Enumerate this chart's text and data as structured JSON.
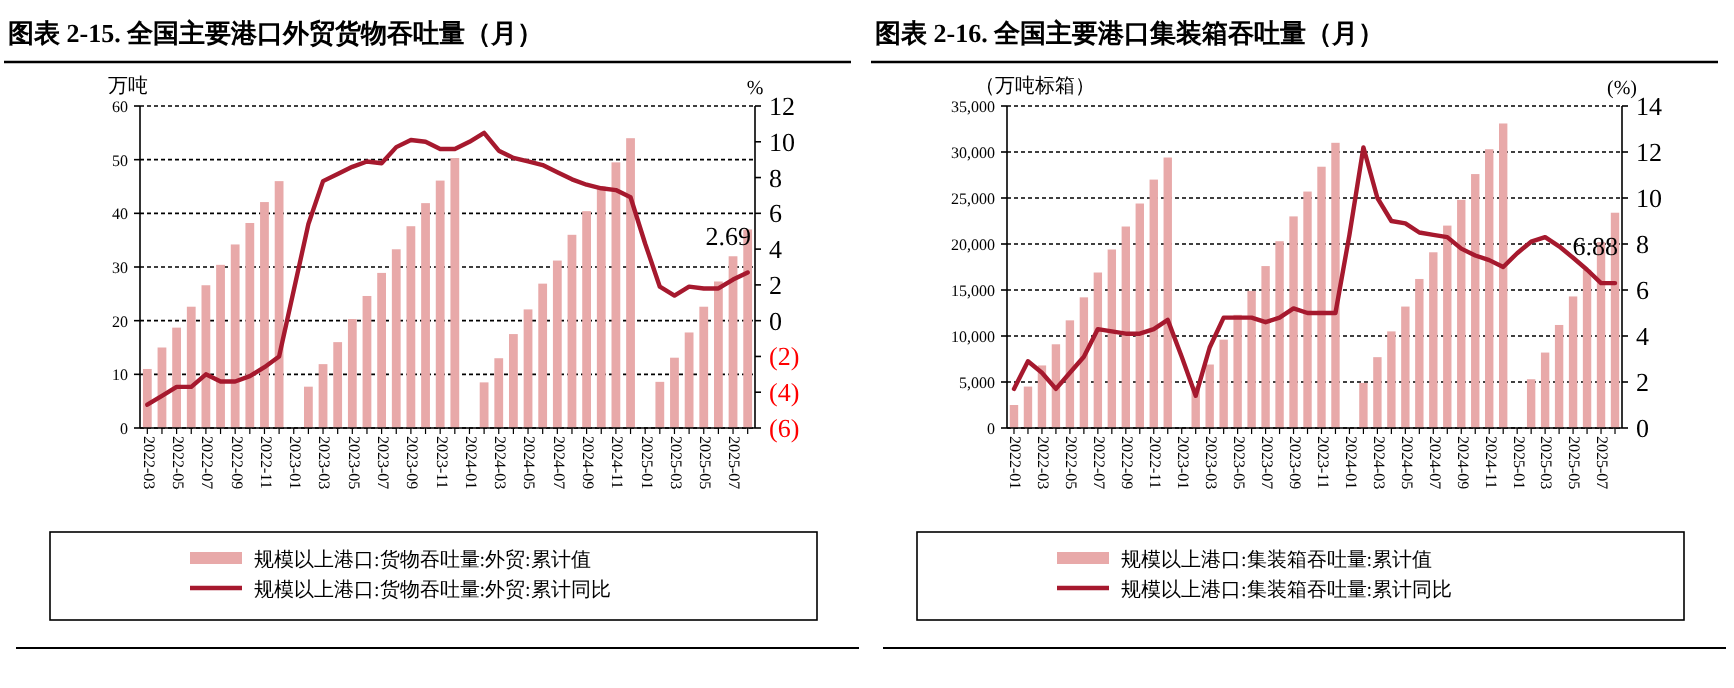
{
  "chart_data": [
    {
      "type": "bar",
      "title": "图表 2-15. 全国主要港口外贸货物吞吐量（月）",
      "ylabel": "万吨",
      "y2label": "%",
      "categories": [
        "2022-03",
        null,
        "2022-05",
        null,
        "2022-07",
        null,
        "2022-09",
        null,
        "2022-11",
        null,
        "2023-01",
        null,
        "2023-03",
        null,
        "2023-05",
        null,
        "2023-07",
        null,
        "2023-09",
        null,
        "2023-11",
        null,
        "2024-01",
        null,
        "2024-03",
        null,
        "2024-05",
        null,
        "2024-07",
        null,
        "2024-09",
        null,
        "2024-11",
        null,
        "2025-01",
        null,
        "2025-03",
        null,
        "2025-05",
        null,
        "2025-07",
        null
      ],
      "series": [
        {
          "name": "规模以上港口:货物吞吐量:外贸:累计值",
          "color": "#e8a9a9",
          "values": [
            11,
            15,
            18.7,
            22.6,
            26.6,
            30.4,
            34.2,
            38.2,
            42.1,
            46,
            null,
            7.7,
            11.9,
            16,
            20.3,
            24.6,
            28.9,
            33.3,
            37.6,
            41.9,
            46.1,
            50.3,
            null,
            8.5,
            13,
            17.5,
            22.1,
            26.9,
            31.2,
            36,
            40.4,
            45,
            49.5,
            54,
            null,
            8.6,
            13.1,
            17.8,
            22.6,
            27.3,
            32,
            37
          ]
        },
        {
          "name": "规模以上港口:货物吞吐量:外贸:累计同比",
          "type": "line",
          "axis": "y2",
          "color": "#a6192e",
          "values": [
            -4.7,
            -4.2,
            -3.7,
            -3.7,
            -3.0,
            -3.4,
            -3.4,
            -3.1,
            -2.6,
            -2.0,
            1.7,
            5.4,
            7.8,
            8.2,
            8.6,
            8.9,
            8.8,
            9.7,
            10.1,
            10.0,
            9.6,
            9.6,
            10.0,
            10.5,
            9.5,
            9.1,
            8.9,
            8.7,
            8.3,
            7.9,
            7.6,
            7.4,
            7.3,
            6.9,
            4.3,
            1.9,
            1.4,
            1.9,
            1.8,
            1.8,
            2.3,
            2.69
          ]
        }
      ],
      "ylim": [
        0,
        60
      ],
      "yticks": [
        0,
        10,
        20,
        30,
        40,
        50,
        60
      ],
      "y2lim": [
        -6,
        12
      ],
      "y2ticks": [
        {
          "value": -6,
          "label": "(6)"
        },
        {
          "value": -4,
          "label": "(4)"
        },
        {
          "value": -2,
          "label": "(2)"
        },
        0,
        2,
        4,
        6,
        8,
        10,
        12
      ],
      "annotations": [
        "2.69"
      ],
      "grid": "y",
      "legend": "bottom"
    },
    {
      "type": "bar",
      "title": "图表 2-16. 全国主要港口集装箱吞吐量（月）",
      "ylabel": "（万吨标箱）",
      "y2label": "(%)",
      "categories": [
        "2022-01",
        null,
        "2022-03",
        null,
        "2022-05",
        null,
        "2022-07",
        null,
        "2022-09",
        null,
        "2022-11",
        null,
        "2023-01",
        null,
        "2023-03",
        null,
        "2023-05",
        null,
        "2023-07",
        null,
        "2023-09",
        null,
        "2023-11",
        null,
        "2024-01",
        null,
        "2024-03",
        null,
        "2024-05",
        null,
        "2024-07",
        null,
        "2024-09",
        null,
        "2024-11",
        null,
        "2025-01",
        null,
        "2025-03",
        null,
        "2025-05",
        null,
        "2025-07",
        null
      ],
      "series": [
        {
          "name": "规模以上港口:集装箱吞吐量:累计值",
          "color": "#e8a9a9",
          "values": [
            2500,
            4500,
            6800,
            9100,
            11700,
            14200,
            16900,
            19400,
            21900,
            24400,
            27000,
            29400,
            null,
            4500,
            6900,
            9600,
            12300,
            14900,
            17600,
            20300,
            23000,
            25700,
            28400,
            31000,
            null,
            4900,
            7700,
            10500,
            13200,
            16200,
            19100,
            22000,
            24800,
            27600,
            30300,
            33100,
            null,
            5300,
            8200,
            11200,
            14300,
            17200,
            20200,
            23400
          ]
        },
        {
          "name": "规模以上港口:集装箱吞吐量:累计同比",
          "type": "line",
          "axis": "y2",
          "color": "#a6192e",
          "values": [
            1.7,
            2.9,
            2.4,
            1.7,
            2.4,
            3.1,
            4.3,
            4.2,
            4.1,
            4.1,
            4.3,
            4.7,
            3.1,
            1.4,
            3.5,
            4.8,
            4.8,
            4.8,
            4.6,
            4.8,
            5.2,
            5.0,
            5.0,
            5.0,
            8.4,
            12.2,
            10.0,
            9.0,
            8.9,
            8.5,
            8.4,
            8.3,
            7.8,
            7.5,
            7.3,
            7.0,
            7.6,
            8.1,
            8.3,
            7.9,
            7.4,
            6.88,
            6.3,
            6.3
          ]
        }
      ],
      "ylim": [
        0,
        35000
      ],
      "yticks": [
        0,
        {
          "value": 5000,
          "label": "5,000"
        },
        {
          "value": 10000,
          "label": "10,000"
        },
        {
          "value": 15000,
          "label": "15,000"
        },
        {
          "value": 20000,
          "label": "20,000"
        },
        {
          "value": 25000,
          "label": "25,000"
        },
        {
          "value": 30000,
          "label": "30,000"
        },
        {
          "value": 35000,
          "label": "35,000"
        }
      ],
      "y2lim": [
        0,
        14
      ],
      "y2ticks": [
        0,
        2,
        4,
        6,
        8,
        10,
        12,
        14
      ],
      "annotations": [
        "6.88"
      ],
      "grid": "y",
      "legend": "bottom"
    }
  ]
}
